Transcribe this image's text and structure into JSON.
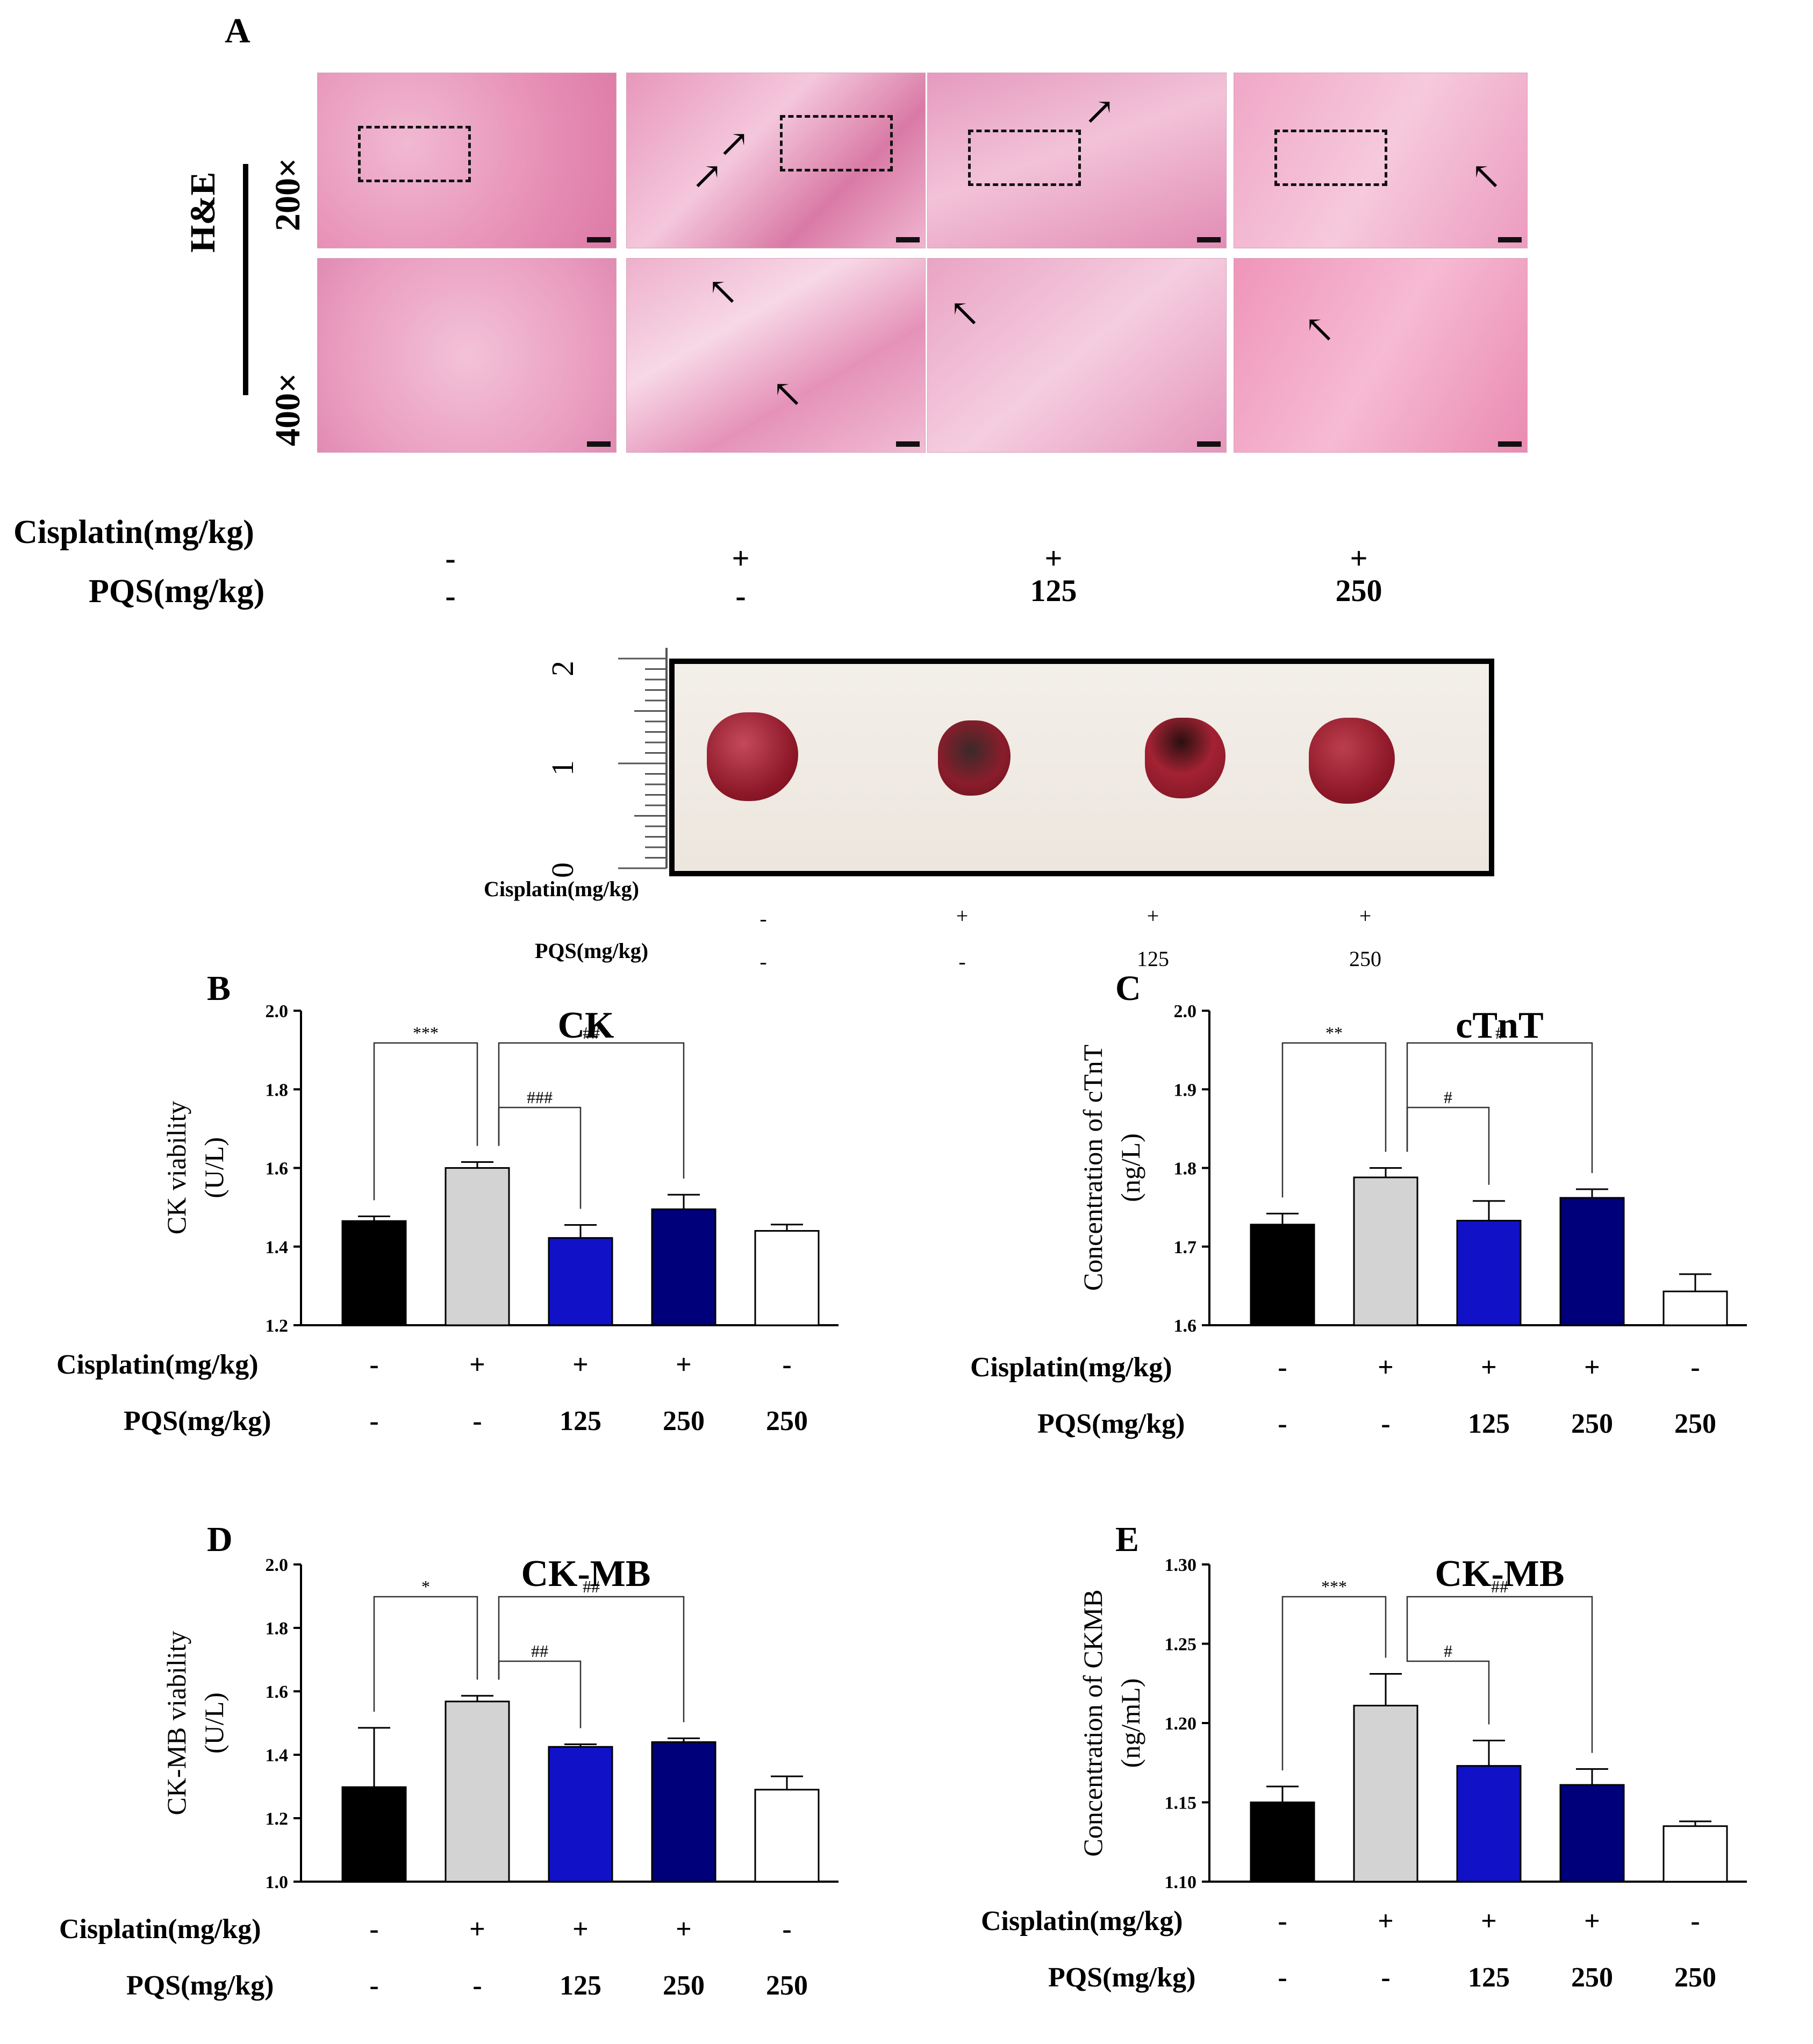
{
  "panel_a": {
    "letter": "A",
    "stain_label": "H&E",
    "mag_top": "200×",
    "mag_bottom": "400×",
    "row_labels": {
      "cisplatin": "Cisplatin(mg/kg)",
      "pqs": "PQS(mg/kg)"
    },
    "cisplatin_values": [
      "-",
      "+",
      "+",
      "+"
    ],
    "pqs_values": [
      "-",
      "-",
      "125",
      "250"
    ]
  },
  "heart_photo": {
    "ruler_ticks": [
      "2",
      "1",
      "0"
    ],
    "row_labels": {
      "cisplatin": "Cisplatin(mg/kg)",
      "pqs": "PQS(mg/kg)"
    },
    "cisplatin_values": [
      "-",
      "+",
      "+",
      "+"
    ],
    "pqs_values": [
      "-",
      "-",
      "125",
      "250"
    ]
  },
  "row_labels": {
    "cisplatin": "Cisplatin(mg/kg)",
    "pqs": "PQS(mg/kg)"
  },
  "bar_colors": [
    "#000000",
    "#d3d3d3",
    "#1111c8",
    "#00007a",
    "#ffffff"
  ],
  "chart_data": [
    {
      "id": "B",
      "letter": "B",
      "type": "bar",
      "title": "CK",
      "ylabel_lines": [
        "CK viability",
        "(U/L)"
      ],
      "ylim": [
        1.2,
        2.0
      ],
      "yticks": [
        "1.2",
        "1.4",
        "1.6",
        "1.8",
        "2.0"
      ],
      "values": [
        1.465,
        1.6,
        1.422,
        1.495,
        1.44
      ],
      "errors": [
        0.012,
        0.015,
        0.033,
        0.037,
        0.016
      ],
      "cisplatin": [
        "-",
        "+",
        "+",
        "+",
        "-"
      ],
      "pqs": [
        "-",
        "-",
        "125",
        "250",
        "250"
      ],
      "sig": [
        {
          "from": 0,
          "to": 1,
          "label": "***"
        },
        {
          "from": 1,
          "to": 2,
          "label": "###"
        },
        {
          "from": 1,
          "to": 3,
          "label": "##"
        }
      ]
    },
    {
      "id": "C",
      "letter": "C",
      "type": "bar",
      "title": "cTnT",
      "ylabel_lines": [
        "Concentration of cTnT",
        "(ng/L)"
      ],
      "ylim": [
        1.6,
        2.0
      ],
      "yticks": [
        "1.6",
        "1.7",
        "1.8",
        "1.9",
        "2.0"
      ],
      "values": [
        1.728,
        1.788,
        1.733,
        1.762,
        1.643
      ],
      "errors": [
        0.014,
        0.012,
        0.025,
        0.011,
        0.022
      ],
      "cisplatin": [
        "-",
        "+",
        "+",
        "+",
        "-"
      ],
      "pqs": [
        "-",
        "-",
        "125",
        "250",
        "250"
      ],
      "sig": [
        {
          "from": 0,
          "to": 1,
          "label": "**"
        },
        {
          "from": 1,
          "to": 2,
          "label": "#"
        },
        {
          "from": 1,
          "to": 3,
          "label": "#"
        }
      ]
    },
    {
      "id": "D",
      "letter": "D",
      "type": "bar",
      "title": "CK-MB",
      "ylabel_lines": [
        "CK-MB viability",
        "(U/L)"
      ],
      "ylim": [
        1.0,
        2.0
      ],
      "yticks": [
        "1.0",
        "1.2",
        "1.4",
        "1.6",
        "1.8",
        "2.0"
      ],
      "values": [
        1.298,
        1.568,
        1.425,
        1.44,
        1.29
      ],
      "errors": [
        0.187,
        0.018,
        0.008,
        0.012,
        0.042
      ],
      "cisplatin": [
        "-",
        "+",
        "+",
        "+",
        "-"
      ],
      "pqs": [
        "-",
        "-",
        "125",
        "250",
        "250"
      ],
      "sig": [
        {
          "from": 0,
          "to": 1,
          "label": "*"
        },
        {
          "from": 1,
          "to": 2,
          "label": "##"
        },
        {
          "from": 1,
          "to": 3,
          "label": "##"
        }
      ]
    },
    {
      "id": "E",
      "letter": "E",
      "type": "bar",
      "title": "CK-MB",
      "ylabel_lines": [
        "Concentration of CKMB",
        "(ng/mL)"
      ],
      "ylim": [
        1.1,
        1.3
      ],
      "yticks": [
        "1.10",
        "1.15",
        "1.20",
        "1.25",
        "1.30"
      ],
      "values": [
        1.15,
        1.211,
        1.173,
        1.161,
        1.135
      ],
      "errors": [
        0.01,
        0.02,
        0.016,
        0.01,
        0.003
      ],
      "cisplatin": [
        "-",
        "+",
        "+",
        "+",
        "-"
      ],
      "pqs": [
        "-",
        "-",
        "125",
        "250",
        "250"
      ],
      "sig": [
        {
          "from": 0,
          "to": 1,
          "label": "***"
        },
        {
          "from": 1,
          "to": 2,
          "label": "#"
        },
        {
          "from": 1,
          "to": 3,
          "label": "##"
        }
      ]
    }
  ]
}
